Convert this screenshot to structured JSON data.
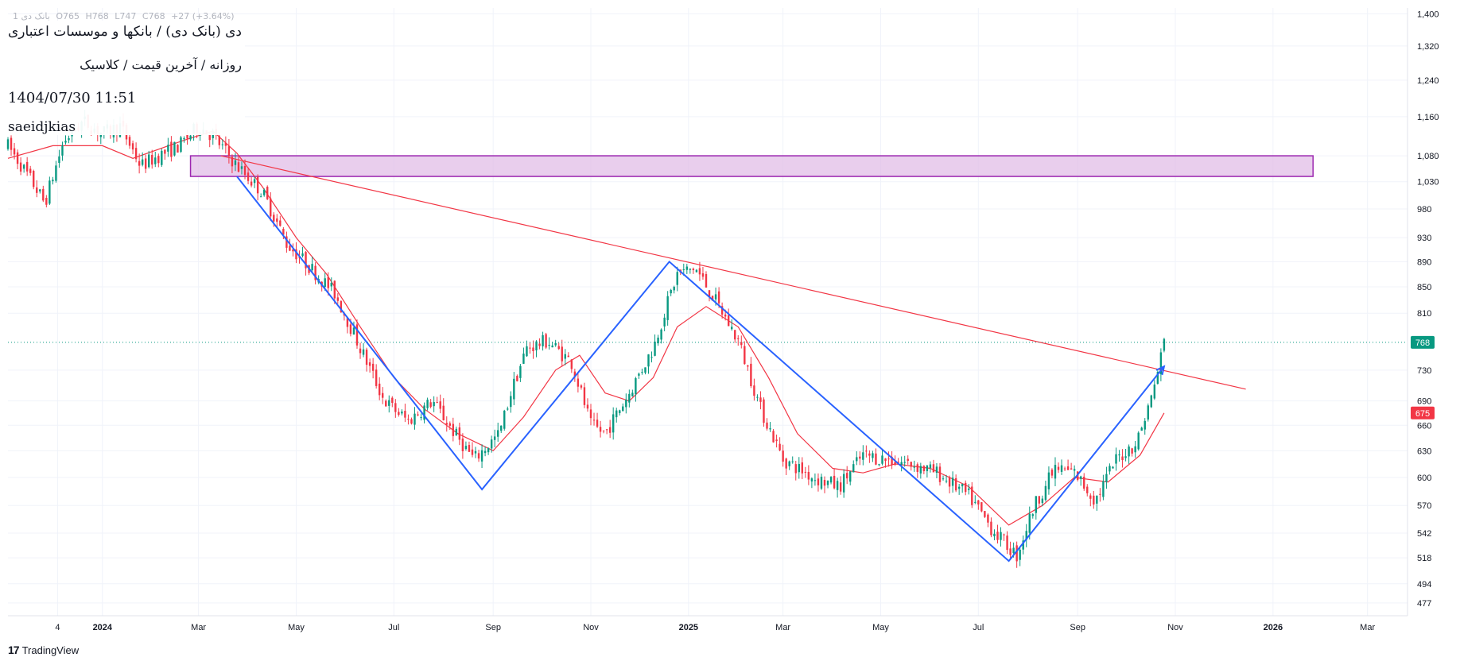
{
  "header": {
    "symbol_short": "1 بانک دی",
    "ohlc": {
      "O": "O765",
      "H": "H768",
      "L": "L747",
      "C": "C768",
      "change": "+27 (+3.64%)"
    },
    "title": "دی (بانک دی) / بانکها و موسسات اعتباری",
    "subtitle": "روزانه / آخرین قیمت / کلاسیک",
    "datetime": "1404/07/30 11:51",
    "author": "saeidjkias"
  },
  "branding": {
    "logo_text": "17",
    "name": "TradingView"
  },
  "colors": {
    "up": "#089981",
    "down": "#f23645",
    "ma": "#f23645",
    "trendline": "#f23645",
    "zigzag": "#2962ff",
    "zone_fill": "#e1bee7",
    "zone_border": "#9c27b0",
    "last_price": "#089981",
    "ma_label": "#f23645",
    "grid": "#f0f3fa",
    "axis_text": "#131722"
  },
  "chart_data": {
    "type": "candlestick",
    "y_scale": "log",
    "ylim": [
      466,
      1415
    ],
    "xlim": [
      "2023-11-03",
      "2026-03-26"
    ],
    "y_ticks": [
      1400,
      1320,
      1240,
      1160,
      1080,
      1030,
      980,
      930,
      890,
      850,
      810,
      730,
      690,
      660,
      630,
      600,
      570,
      542,
      518,
      494,
      477
    ],
    "x_ticks": [
      {
        "label": "4",
        "date": "2023-12-04",
        "bold": false
      },
      {
        "label": "2024",
        "date": "2024-01-01",
        "bold": true
      },
      {
        "label": "Mar",
        "date": "2024-03-01",
        "bold": false
      },
      {
        "label": "May",
        "date": "2024-05-01",
        "bold": false
      },
      {
        "label": "Jul",
        "date": "2024-07-01",
        "bold": false
      },
      {
        "label": "Sep",
        "date": "2024-09-01",
        "bold": false
      },
      {
        "label": "Nov",
        "date": "2024-11-01",
        "bold": false
      },
      {
        "label": "2025",
        "date": "2025-01-01",
        "bold": true
      },
      {
        "label": "Mar",
        "date": "2025-03-01",
        "bold": false
      },
      {
        "label": "May",
        "date": "2025-05-01",
        "bold": false
      },
      {
        "label": "Jul",
        "date": "2025-07-01",
        "bold": false
      },
      {
        "label": "Sep",
        "date": "2025-09-01",
        "bold": false
      },
      {
        "label": "Nov",
        "date": "2025-11-01",
        "bold": false
      },
      {
        "label": "2026",
        "date": "2026-01-01",
        "bold": true
      },
      {
        "label": "Mar",
        "date": "2026-03-01",
        "bold": false
      }
    ],
    "last_price": {
      "value": 768,
      "label": "768"
    },
    "ma_last": {
      "value": 675,
      "label": "675"
    },
    "price_path": [
      [
        "2023-11-03",
        1100
      ],
      [
        "2023-11-18",
        1030
      ],
      [
        "2023-11-26",
        990
      ],
      [
        "2023-12-08",
        1110
      ],
      [
        "2023-12-20",
        1150
      ],
      [
        "2024-01-01",
        1125
      ],
      [
        "2024-01-12",
        1140
      ],
      [
        "2024-01-25",
        1060
      ],
      [
        "2024-02-05",
        1080
      ],
      [
        "2024-02-18",
        1100
      ],
      [
        "2024-03-01",
        1140
      ],
      [
        "2024-03-10",
        1120
      ],
      [
        "2024-03-25",
        1060
      ],
      [
        "2024-04-10",
        1010
      ],
      [
        "2024-04-25",
        920
      ],
      [
        "2024-05-10",
        880
      ],
      [
        "2024-05-25",
        840
      ],
      [
        "2024-06-10",
        760
      ],
      [
        "2024-06-25",
        690
      ],
      [
        "2024-07-10",
        665
      ],
      [
        "2024-07-25",
        690
      ],
      [
        "2024-08-08",
        650
      ],
      [
        "2024-08-20",
        620
      ],
      [
        "2024-09-05",
        650
      ],
      [
        "2024-09-12",
        700
      ],
      [
        "2024-09-22",
        760
      ],
      [
        "2024-10-05",
        770
      ],
      [
        "2024-10-20",
        740
      ],
      [
        "2024-11-01",
        660
      ],
      [
        "2024-11-10",
        650
      ],
      [
        "2024-11-25",
        700
      ],
      [
        "2024-12-10",
        760
      ],
      [
        "2024-12-25",
        870
      ],
      [
        "2025-01-05",
        880
      ],
      [
        "2025-01-15",
        840
      ],
      [
        "2025-02-01",
        770
      ],
      [
        "2025-02-15",
        680
      ],
      [
        "2025-03-01",
        620
      ],
      [
        "2025-03-20",
        600
      ],
      [
        "2025-04-05",
        590
      ],
      [
        "2025-04-20",
        625
      ],
      [
        "2025-05-05",
        620
      ],
      [
        "2025-05-20",
        615
      ],
      [
        "2025-06-05",
        605
      ],
      [
        "2025-06-25",
        580
      ],
      [
        "2025-07-10",
        545
      ],
      [
        "2025-07-25",
        520
      ],
      [
        "2025-08-05",
        570
      ],
      [
        "2025-08-18",
        610
      ],
      [
        "2025-08-30",
        605
      ],
      [
        "2025-09-12",
        575
      ],
      [
        "2025-09-25",
        620
      ],
      [
        "2025-10-08",
        640
      ],
      [
        "2025-10-18",
        700
      ],
      [
        "2025-10-25",
        768
      ]
    ],
    "ma_path": [
      [
        "2023-11-03",
        1075
      ],
      [
        "2023-12-01",
        1100
      ],
      [
        "2024-01-01",
        1100
      ],
      [
        "2024-01-20",
        1075
      ],
      [
        "2024-02-20",
        1110
      ],
      [
        "2024-03-10",
        1130
      ],
      [
        "2024-03-25",
        1085
      ],
      [
        "2024-04-10",
        1020
      ],
      [
        "2024-05-01",
        930
      ],
      [
        "2024-05-20",
        870
      ],
      [
        "2024-06-10",
        790
      ],
      [
        "2024-07-01",
        720
      ],
      [
        "2024-07-20",
        680
      ],
      [
        "2024-08-10",
        650
      ],
      [
        "2024-09-01",
        630
      ],
      [
        "2024-09-20",
        670
      ],
      [
        "2024-10-10",
        730
      ],
      [
        "2024-10-25",
        750
      ],
      [
        "2024-11-10",
        700
      ],
      [
        "2024-11-25",
        690
      ],
      [
        "2024-12-10",
        720
      ],
      [
        "2024-12-25",
        790
      ],
      [
        "2025-01-12",
        820
      ],
      [
        "2025-02-01",
        790
      ],
      [
        "2025-02-20",
        720
      ],
      [
        "2025-03-10",
        650
      ],
      [
        "2025-04-01",
        610
      ],
      [
        "2025-04-20",
        605
      ],
      [
        "2025-05-10",
        615
      ],
      [
        "2025-06-01",
        610
      ],
      [
        "2025-06-25",
        590
      ],
      [
        "2025-07-20",
        550
      ],
      [
        "2025-08-10",
        570
      ],
      [
        "2025-08-30",
        600
      ],
      [
        "2025-09-20",
        595
      ],
      [
        "2025-10-10",
        625
      ],
      [
        "2025-10-25",
        675
      ]
    ],
    "trendline": {
      "from": [
        "2024-03-15",
        1080
      ],
      "to": [
        "2025-12-15",
        705
      ]
    },
    "zone": {
      "x_from": "2024-02-25",
      "x_to": "2026-01-26",
      "y_low": 1040,
      "y_high": 1080
    },
    "zigzag": [
      [
        "2024-03-25",
        1040
      ],
      [
        "2024-08-25",
        587
      ],
      [
        "2024-12-20",
        890
      ],
      [
        "2025-07-20",
        515
      ],
      [
        "2025-10-25",
        735
      ]
    ],
    "zigzag_arrow_tip": [
      "2025-10-25",
      735
    ]
  }
}
